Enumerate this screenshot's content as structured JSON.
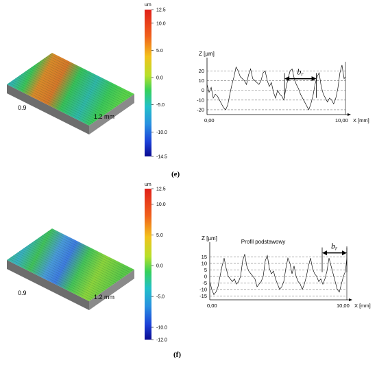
{
  "panels": [
    {
      "caption": "(e)",
      "surface": {
        "dim_y": "0.9",
        "dim_x": "1.2 mm",
        "colorbar": {
          "unit": "um",
          "ticks": [
            "12.5",
            "10.0",
            "5.0",
            "0.0",
            "-5.0",
            "-10.0",
            "-14.5"
          ],
          "values": [
            12.5,
            10,
            5,
            0,
            -5,
            -10,
            -14.5
          ]
        }
      },
      "chart_data": {
        "type": "line",
        "ylabel": "Z [µm]",
        "xlabel": "X [mm]",
        "x_tick_labels": [
          "0,00",
          "10,00"
        ],
        "xlim": [
          0,
          10
        ],
        "y_ticks": [
          20,
          10,
          0,
          -10,
          -20
        ],
        "y_tick_labels": [
          "20",
          "10",
          "0",
          "-10",
          "-20"
        ],
        "ylim": [
          -25,
          28
        ],
        "grid": "horizontal-dashed",
        "annotation": {
          "label": "b",
          "subscript": "r",
          "x_from": 5.6,
          "x_to": 7.9,
          "y": 12
        },
        "x": [
          0,
          0.15,
          0.3,
          0.45,
          0.6,
          0.75,
          0.9,
          1.05,
          1.2,
          1.35,
          1.5,
          1.65,
          1.8,
          1.95,
          2.1,
          2.25,
          2.4,
          2.55,
          2.7,
          2.85,
          3.0,
          3.15,
          3.3,
          3.45,
          3.6,
          3.75,
          3.9,
          4.05,
          4.2,
          4.35,
          4.5,
          4.65,
          4.8,
          4.95,
          5.1,
          5.25,
          5.4,
          5.55,
          5.7,
          5.85,
          6.0,
          6.15,
          6.3,
          6.45,
          6.6,
          6.75,
          6.9,
          7.05,
          7.2,
          7.35,
          7.5,
          7.65,
          7.8,
          7.95,
          8.1,
          8.25,
          8.4,
          8.55,
          8.7,
          8.85,
          9.0,
          9.15,
          9.3,
          9.45,
          9.6,
          9.75,
          9.9,
          10.0
        ],
        "values": [
          6,
          -2,
          3,
          -8,
          -4,
          -6,
          -10,
          -14,
          -18,
          -20,
          -15,
          -4,
          6,
          14,
          24,
          20,
          14,
          12,
          10,
          6,
          16,
          22,
          12,
          10,
          8,
          6,
          10,
          18,
          20,
          10,
          4,
          8,
          -2,
          -8,
          0,
          -4,
          -6,
          -10,
          2,
          12,
          20,
          22,
          12,
          6,
          2,
          -4,
          -8,
          -12,
          -16,
          -20,
          -14,
          -6,
          6,
          14,
          18,
          4,
          -4,
          -8,
          -12,
          -8,
          -10,
          -14,
          -8,
          2,
          18,
          26,
          12,
          14
        ]
      }
    },
    {
      "caption": "(f)",
      "surface": {
        "dim_y": "0.9",
        "dim_x": "1.2 mm",
        "colorbar": {
          "unit": "um",
          "ticks": [
            "12.5",
            "10.0",
            "5.0",
            "0.0",
            "-5.0",
            "-10.0",
            "-12.0"
          ],
          "values": [
            12.5,
            10,
            5,
            0,
            -5,
            -10,
            -12
          ]
        }
      },
      "chart_data": {
        "type": "line",
        "title": "Profil podstawowy",
        "ylabel": "Z [µm]",
        "xlabel": "X [mm]",
        "x_tick_labels": [
          "0,00",
          "10,00"
        ],
        "xlim": [
          0,
          10
        ],
        "y_ticks": [
          15,
          10,
          5,
          0,
          -5,
          -10,
          -15
        ],
        "y_tick_labels": [
          "15",
          "10",
          "5",
          "0",
          "-5",
          "-10",
          "-15"
        ],
        "ylim": [
          -18,
          22
        ],
        "grid": "horizontal-dashed",
        "annotation": {
          "label": "b",
          "subscript": "r",
          "x_from": 8.2,
          "x_to": 10.0,
          "y": 18
        },
        "x": [
          0,
          0.15,
          0.3,
          0.45,
          0.6,
          0.75,
          0.9,
          1.05,
          1.2,
          1.35,
          1.5,
          1.65,
          1.8,
          1.95,
          2.1,
          2.25,
          2.4,
          2.55,
          2.7,
          2.85,
          3.0,
          3.15,
          3.3,
          3.45,
          3.6,
          3.75,
          3.9,
          4.05,
          4.2,
          4.35,
          4.5,
          4.65,
          4.8,
          4.95,
          5.1,
          5.25,
          5.4,
          5.55,
          5.7,
          5.85,
          6.0,
          6.15,
          6.3,
          6.45,
          6.6,
          6.75,
          6.9,
          7.05,
          7.2,
          7.35,
          7.5,
          7.65,
          7.8,
          7.95,
          8.1,
          8.25,
          8.4,
          8.55,
          8.7,
          8.85,
          9.0,
          9.15,
          9.3,
          9.45,
          9.6,
          9.75,
          9.9,
          10.0
        ],
        "values": [
          -4,
          -10,
          -14,
          -12,
          -8,
          0,
          8,
          14,
          6,
          0,
          -2,
          -4,
          -2,
          -6,
          -4,
          0,
          12,
          17,
          8,
          4,
          2,
          0,
          -2,
          -8,
          -6,
          -4,
          0,
          12,
          16,
          6,
          2,
          4,
          -2,
          -6,
          -10,
          -8,
          -4,
          6,
          14,
          10,
          2,
          8,
          0,
          -4,
          -6,
          -10,
          -6,
          0,
          8,
          14,
          6,
          2,
          0,
          -4,
          -2,
          -6,
          -2,
          4,
          14,
          8,
          2,
          -4,
          -10,
          -12,
          -6,
          0,
          4,
          14
        ]
      }
    }
  ]
}
